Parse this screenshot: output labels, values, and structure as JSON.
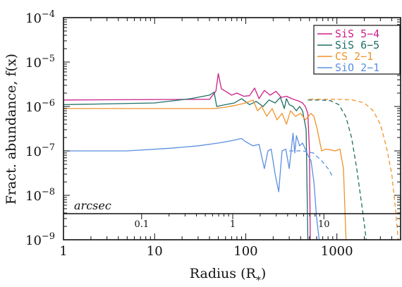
{
  "chart_data": {
    "type": "line",
    "xlabel": "Radius (R*)",
    "xlabel_main": "Radius (R",
    "xlabel_sub": "*",
    "xlabel_close": ")",
    "ylabel": "Fract. abundance, f(x)",
    "xscale": "log",
    "yscale": "log",
    "xlim": [
      1,
      5000
    ],
    "ylim": [
      1e-09,
      0.0001
    ],
    "x_ticks": [
      {
        "value": 1,
        "label": "1"
      },
      {
        "value": 10,
        "label": "10"
      },
      {
        "value": 100,
        "label": "100"
      },
      {
        "value": 1000,
        "label": "1000"
      }
    ],
    "y_ticks": [
      {
        "value": 1e-09,
        "base": "10",
        "exp": "−9"
      },
      {
        "value": 1e-08,
        "base": "10",
        "exp": "−8"
      },
      {
        "value": 1e-07,
        "base": "10",
        "exp": "−7"
      },
      {
        "value": 1e-06,
        "base": "10",
        "exp": "−6"
      },
      {
        "value": 1e-05,
        "base": "10",
        "exp": "−5"
      },
      {
        "value": 0.0001,
        "base": "10",
        "exp": "−4"
      }
    ],
    "secondary_axis": {
      "label": "arcsec",
      "ticks": [
        {
          "label": "0.1",
          "radius": 7.2
        },
        {
          "label": "1",
          "radius": 72
        },
        {
          "label": "10",
          "radius": 720
        }
      ]
    },
    "legend_position": "top-right",
    "series": [
      {
        "name": "SiS 5−4",
        "color": "#cc1f8a",
        "solid": [
          [
            1,
            1.4e-06
          ],
          [
            40,
            1.45e-06
          ],
          [
            47,
            2.2e-06
          ],
          [
            50,
            5.5e-06
          ],
          [
            54,
            2.5e-06
          ],
          [
            60,
            2.2e-06
          ],
          [
            70,
            1.8e-06
          ],
          [
            80,
            2e-06
          ],
          [
            95,
            1.7e-06
          ],
          [
            110,
            1.75e-06
          ],
          [
            125,
            2.6e-06
          ],
          [
            140,
            1.5e-06
          ],
          [
            160,
            2.3e-06
          ],
          [
            185,
            1.8e-06
          ],
          [
            215,
            2.2e-06
          ],
          [
            245,
            1.6e-06
          ],
          [
            280,
            1.7e-06
          ],
          [
            320,
            1.5e-06
          ],
          [
            350,
            1.4e-06
          ],
          [
            390,
            1.3e-06
          ],
          [
            420,
            1.2e-06
          ],
          [
            450,
            1e-06
          ],
          [
            480,
            7e-07
          ],
          [
            500,
            1e-07
          ],
          [
            510,
            1e-09
          ]
        ],
        "dashed": []
      },
      {
        "name": "SiS 6−5",
        "color": "#1f6e66",
        "solid": [
          [
            1,
            1.1e-06
          ],
          [
            10,
            1.2e-06
          ],
          [
            25,
            1.5e-06
          ],
          [
            40,
            1.8e-06
          ],
          [
            45,
            2.1e-06
          ],
          [
            48,
            1e-06
          ],
          [
            60,
            1.1e-06
          ],
          [
            75,
            1.2e-06
          ],
          [
            90,
            1.5e-06
          ],
          [
            110,
            1.1e-06
          ],
          [
            130,
            1.3e-06
          ],
          [
            155,
            1e-06
          ],
          [
            180,
            1.4e-06
          ],
          [
            210,
            1.2e-06
          ],
          [
            240,
            1.6e-06
          ],
          [
            265,
            9e-07
          ],
          [
            280,
            1.5e-06
          ],
          [
            300,
            1.1e-06
          ],
          [
            330,
            1e-06
          ],
          [
            360,
            8e-07
          ],
          [
            390,
            1e-06
          ],
          [
            420,
            8e-07
          ],
          [
            460,
            3e-07
          ],
          [
            480,
            1e-09
          ]
        ],
        "dashed": [
          [
            480,
            1.4e-06
          ],
          [
            650,
            1.4e-06
          ],
          [
            850,
            1.35e-06
          ],
          [
            1050,
            1.1e-06
          ],
          [
            1250,
            6e-07
          ],
          [
            1450,
            2e-07
          ],
          [
            1650,
            4e-08
          ],
          [
            1900,
            5e-09
          ],
          [
            2100,
            1e-09
          ]
        ]
      },
      {
        "name": "CS 2−1",
        "color": "#f0922a",
        "solid": [
          [
            1,
            9e-07
          ],
          [
            45,
            9e-07
          ],
          [
            58,
            9.5e-07
          ],
          [
            75,
            1.05e-06
          ],
          [
            100,
            1.2e-06
          ],
          [
            120,
            1.4e-06
          ],
          [
            135,
            8e-07
          ],
          [
            150,
            1e-06
          ],
          [
            170,
            6e-07
          ],
          [
            195,
            9e-07
          ],
          [
            220,
            5e-07
          ],
          [
            250,
            7e-07
          ],
          [
            280,
            4e-07
          ],
          [
            310,
            8e-07
          ],
          [
            350,
            6e-07
          ],
          [
            400,
            7e-07
          ],
          [
            450,
            5e-07
          ],
          [
            520,
            7e-07
          ],
          [
            560,
            6e-07
          ],
          [
            610,
            3e-07
          ],
          [
            680,
            1e-07
          ],
          [
            760,
            1.1e-07
          ],
          [
            860,
            1.05e-07
          ],
          [
            960,
            1e-07
          ],
          [
            1080,
            1.1e-07
          ],
          [
            1180,
            4e-08
          ],
          [
            1260,
            1e-09
          ]
        ],
        "dashed": [
          [
            500,
            1.45e-06
          ],
          [
            1000,
            1.45e-06
          ],
          [
            1500,
            1.4e-06
          ],
          [
            2000,
            1.2e-06
          ],
          [
            2500,
            8e-07
          ],
          [
            3000,
            4e-07
          ],
          [
            3500,
            1.2e-07
          ],
          [
            4000,
            3e-08
          ],
          [
            4400,
            5e-09
          ],
          [
            4700,
            1e-09
          ]
        ]
      },
      {
        "name": "SiO 2−1",
        "color": "#5a8fe0",
        "solid": [
          [
            1,
            1e-07
          ],
          [
            5,
            1e-07
          ],
          [
            15,
            1.15e-07
          ],
          [
            30,
            1.3e-07
          ],
          [
            50,
            1.5e-07
          ],
          [
            70,
            1.7e-07
          ],
          [
            90,
            1.9e-07
          ],
          [
            100,
            1.6e-07
          ],
          [
            120,
            1.3e-07
          ],
          [
            140,
            1.4e-07
          ],
          [
            160,
            4e-08
          ],
          [
            175,
            1e-07
          ],
          [
            190,
            1.1e-07
          ],
          [
            210,
            3e-08
          ],
          [
            230,
            1.2e-08
          ],
          [
            250,
            1e-07
          ],
          [
            275,
            1.1e-07
          ],
          [
            300,
            4e-08
          ],
          [
            330,
            2.5e-07
          ],
          [
            345,
            9e-08
          ],
          [
            360,
            2.2e-07
          ],
          [
            390,
            1.3e-07
          ],
          [
            420,
            1.5e-07
          ],
          [
            450,
            1.1e-07
          ],
          [
            480,
            8e-08
          ],
          [
            520,
            6e-08
          ],
          [
            560,
            2e-08
          ],
          [
            600,
            3e-09
          ],
          [
            640,
            1e-09
          ]
        ],
        "dashed": [
          [
            300,
            1e-07
          ],
          [
            420,
            1e-07
          ],
          [
            550,
            9e-08
          ],
          [
            680,
            6e-08
          ],
          [
            800,
            4e-08
          ],
          [
            900,
            2.6e-08
          ]
        ]
      }
    ]
  }
}
